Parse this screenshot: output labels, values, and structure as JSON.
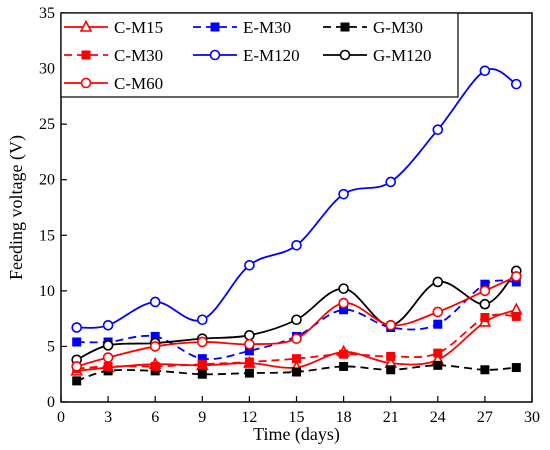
{
  "chart_data": {
    "type": "line",
    "xlabel": "Time (days)",
    "ylabel": "Feeding voltage (V)",
    "xlim": [
      0,
      30
    ],
    "ylim": [
      0,
      35
    ],
    "xticks": [
      0,
      3,
      6,
      9,
      12,
      15,
      18,
      21,
      24,
      27,
      30
    ],
    "yticks": [
      0,
      5,
      10,
      15,
      20,
      25,
      30,
      35
    ],
    "grid": false,
    "legend_position": "top-left",
    "series": [
      {
        "name": "C-M15",
        "color": "#ff0000",
        "style": "solid",
        "marker": "triangle-open",
        "x": [
          1,
          3,
          6,
          9,
          12,
          15,
          18,
          21,
          24,
          27,
          29
        ],
        "y": [
          2.8,
          3.1,
          3.4,
          3.3,
          3.5,
          3.1,
          4.5,
          3.5,
          3.8,
          7.2,
          8.3
        ]
      },
      {
        "name": "E-M30",
        "color": "#0000ff",
        "style": "dashed",
        "marker": "square-filled",
        "x": [
          1,
          3,
          6,
          9,
          12,
          15,
          18,
          21,
          24,
          27,
          29
        ],
        "y": [
          5.4,
          5.4,
          5.9,
          3.9,
          4.6,
          5.9,
          8.3,
          6.7,
          7.0,
          10.6,
          10.8
        ]
      },
      {
        "name": "G-M30",
        "color": "#000000",
        "style": "dashed",
        "marker": "square-filled",
        "x": [
          1,
          3,
          6,
          9,
          12,
          15,
          18,
          21,
          24,
          27,
          29
        ],
        "y": [
          1.9,
          2.8,
          2.8,
          2.5,
          2.6,
          2.7,
          3.2,
          2.9,
          3.3,
          2.9,
          3.1
        ]
      },
      {
        "name": "C-M30",
        "color": "#ff0000",
        "style": "dashed",
        "marker": "square-filled",
        "x": [
          1,
          3,
          6,
          9,
          12,
          15,
          18,
          21,
          24,
          27,
          29
        ],
        "y": [
          3.0,
          3.2,
          3.2,
          3.4,
          3.6,
          3.9,
          4.3,
          4.1,
          4.4,
          7.6,
          7.7
        ]
      },
      {
        "name": "E-M120",
        "color": "#0000ff",
        "style": "solid",
        "marker": "circle-open",
        "x": [
          1,
          3,
          6,
          9,
          12,
          15,
          18,
          21,
          24,
          27,
          29
        ],
        "y": [
          6.7,
          6.9,
          9.0,
          7.4,
          12.3,
          14.1,
          18.7,
          19.8,
          24.5,
          29.8,
          28.6
        ]
      },
      {
        "name": "G-M120",
        "color": "#000000",
        "style": "solid",
        "marker": "circle-open",
        "x": [
          1,
          3,
          6,
          9,
          12,
          15,
          18,
          21,
          24,
          27,
          29
        ],
        "y": [
          3.8,
          5.1,
          5.3,
          5.7,
          6.0,
          7.4,
          10.2,
          6.9,
          10.8,
          8.8,
          11.8
        ]
      },
      {
        "name": "C-M60",
        "color": "#ff0000",
        "style": "solid",
        "marker": "circle-open",
        "x": [
          1,
          3,
          6,
          9,
          12,
          15,
          18,
          21,
          24,
          27,
          29
        ],
        "y": [
          3.2,
          4.0,
          5.0,
          5.4,
          5.2,
          5.7,
          8.9,
          6.9,
          8.1,
          10.0,
          11.3
        ]
      }
    ]
  }
}
